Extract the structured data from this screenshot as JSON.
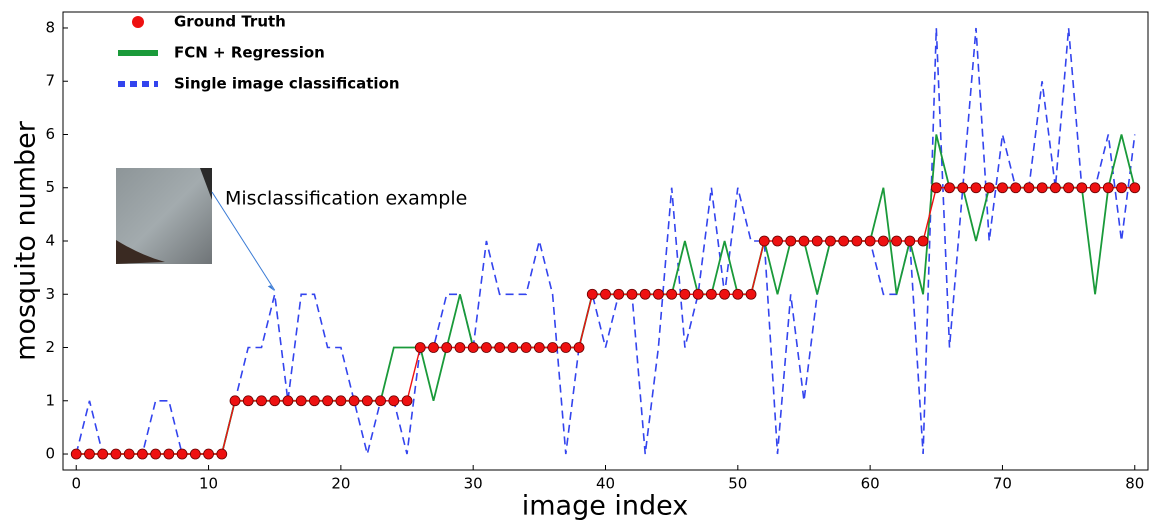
{
  "chart_data": {
    "type": "line",
    "x_label": "image index",
    "y_label": "mosquito number",
    "xlim": [
      -1,
      81
    ],
    "ylim": [
      -0.3,
      8.3
    ],
    "xticks": [
      0,
      10,
      20,
      30,
      40,
      50,
      60,
      70,
      80
    ],
    "yticks": [
      0,
      1,
      2,
      3,
      4,
      5,
      6,
      7,
      8
    ],
    "legend": "upper left",
    "annotation": {
      "text": "Misclassification example",
      "x": 15,
      "y": 3
    },
    "x": [
      0,
      1,
      2,
      3,
      4,
      5,
      6,
      7,
      8,
      9,
      10,
      11,
      12,
      13,
      14,
      15,
      16,
      17,
      18,
      19,
      20,
      21,
      22,
      23,
      24,
      25,
      26,
      27,
      28,
      29,
      30,
      31,
      32,
      33,
      34,
      35,
      36,
      37,
      38,
      39,
      40,
      41,
      42,
      43,
      44,
      45,
      46,
      47,
      48,
      49,
      50,
      51,
      52,
      53,
      54,
      55,
      56,
      57,
      58,
      59,
      60,
      61,
      62,
      63,
      64,
      65,
      66,
      67,
      68,
      69,
      70,
      71,
      72,
      73,
      74,
      75,
      76,
      77,
      78,
      79,
      80
    ],
    "series": [
      {
        "name": "Single image classification",
        "color": "#3344ee",
        "style": "dashed",
        "values": [
          0,
          1,
          0,
          0,
          0,
          0,
          1,
          1,
          0,
          0,
          0,
          0,
          1,
          2,
          2,
          3,
          1,
          3,
          3,
          2,
          2,
          1,
          0,
          1,
          1,
          0,
          2,
          2,
          3,
          3,
          2,
          4,
          3,
          3,
          3,
          4,
          3,
          0,
          2,
          3,
          2,
          3,
          3,
          0,
          2,
          5,
          2,
          3,
          5,
          3,
          5,
          4,
          4,
          0,
          3,
          1,
          3,
          4,
          4,
          4,
          4,
          3,
          3,
          4,
          0,
          8,
          2,
          5,
          8,
          4,
          6,
          5,
          5,
          7,
          5,
          8,
          5,
          5,
          6,
          4,
          6
        ]
      },
      {
        "name": "FCN + Regression",
        "color": "#1a9a3a",
        "style": "solid",
        "values": [
          0,
          0,
          0,
          0,
          0,
          0,
          0,
          0,
          0,
          0,
          0,
          0,
          1,
          1,
          1,
          1,
          1,
          1,
          1,
          1,
          1,
          1,
          1,
          1,
          2,
          2,
          2,
          1,
          2,
          3,
          2,
          2,
          2,
          2,
          2,
          2,
          2,
          2,
          2,
          3,
          3,
          3,
          3,
          3,
          3,
          3,
          4,
          3,
          3,
          4,
          3,
          3,
          4,
          3,
          4,
          4,
          3,
          4,
          4,
          4,
          4,
          5,
          3,
          4,
          3,
          6,
          5,
          5,
          4,
          5,
          5,
          5,
          5,
          5,
          5,
          5,
          5,
          3,
          5,
          6,
          5
        ]
      },
      {
        "name": "Ground Truth",
        "color": "#ee1111",
        "style": "marker",
        "values": [
          0,
          0,
          0,
          0,
          0,
          0,
          0,
          0,
          0,
          0,
          0,
          0,
          1,
          1,
          1,
          1,
          1,
          1,
          1,
          1,
          1,
          1,
          1,
          1,
          1,
          1,
          2,
          2,
          2,
          2,
          2,
          2,
          2,
          2,
          2,
          2,
          2,
          2,
          2,
          3,
          3,
          3,
          3,
          3,
          3,
          3,
          3,
          3,
          3,
          3,
          3,
          3,
          4,
          4,
          4,
          4,
          4,
          4,
          4,
          4,
          4,
          4,
          4,
          4,
          4,
          5,
          5,
          5,
          5,
          5,
          5,
          5,
          5,
          5,
          5,
          5,
          5,
          5,
          5,
          5,
          5
        ]
      }
    ]
  }
}
